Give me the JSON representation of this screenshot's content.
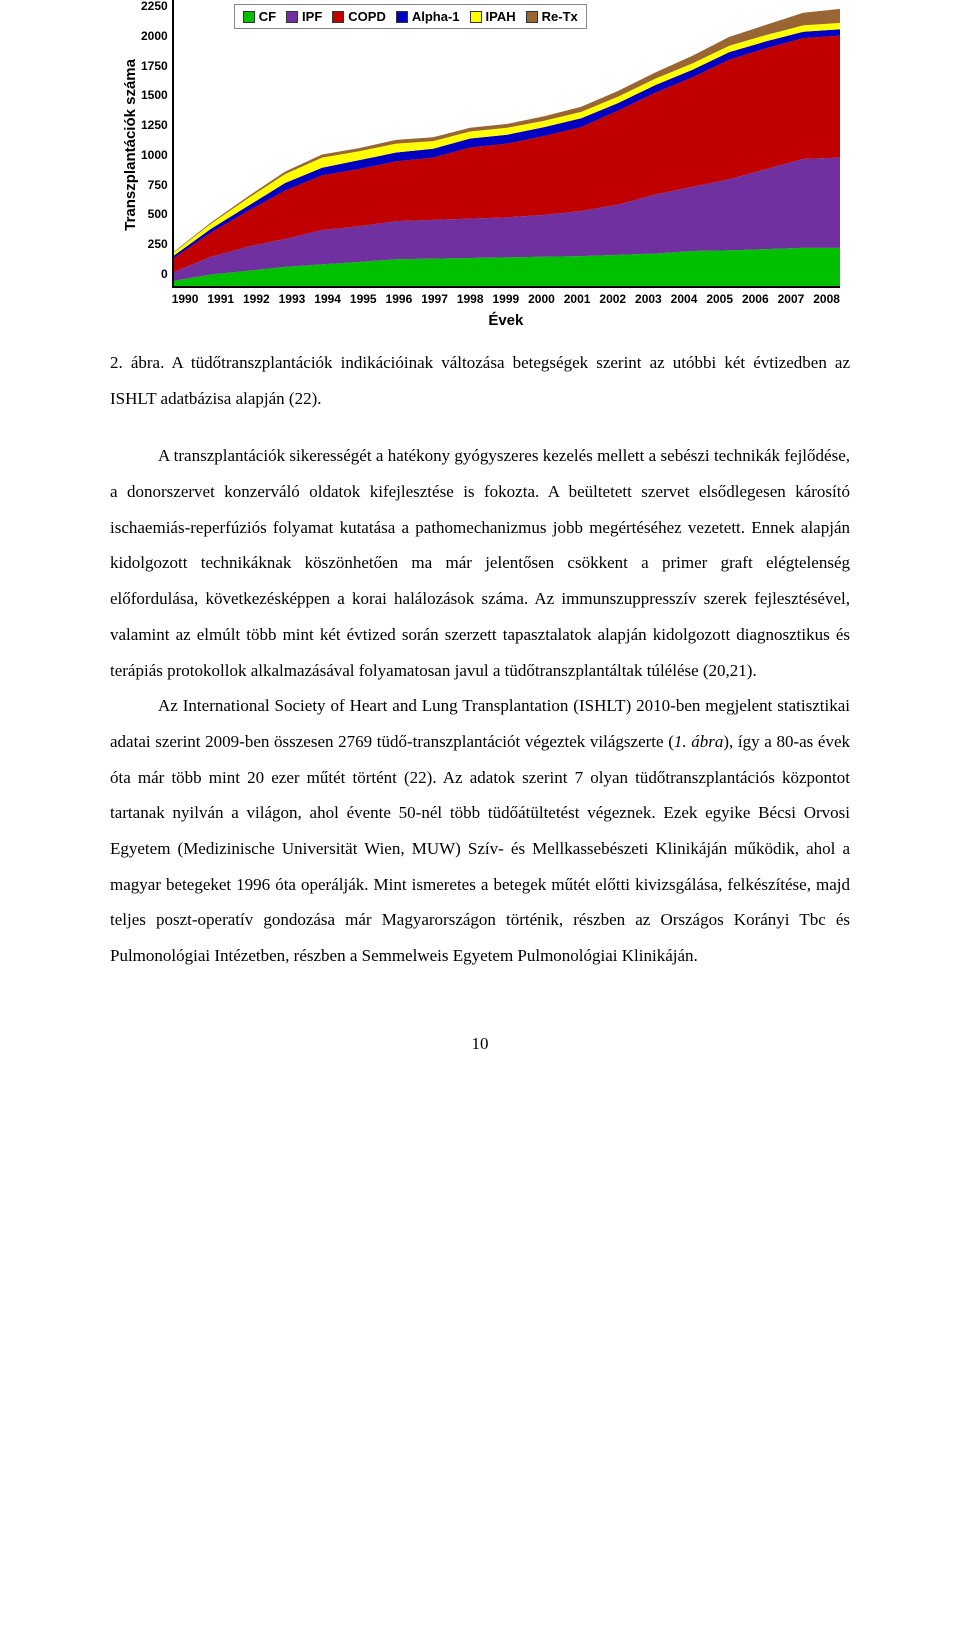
{
  "chart": {
    "type": "stacked-area",
    "y_axis_label": "Transzplantációk száma",
    "x_axis_label": "Évek",
    "x_categories": [
      "1990",
      "1991",
      "1992",
      "1993",
      "1994",
      "1995",
      "1996",
      "1997",
      "1998",
      "1999",
      "2000",
      "2001",
      "2002",
      "2003",
      "2004",
      "2005",
      "2006",
      "2007",
      "2008"
    ],
    "y_ticks": [
      "2250",
      "2000",
      "1750",
      "1500",
      "1250",
      "1000",
      "750",
      "500",
      "250",
      "0"
    ],
    "ylim": [
      0,
      2250
    ],
    "ytick_step": 250,
    "background_color": "#ffffff",
    "plot_bg": "#ffffff",
    "axis_color": "#000000",
    "tick_color": "#000000",
    "legend_border_color": "#888888",
    "legend_bg": "#ffffff",
    "font_family": "Arial",
    "font_weight_axis": 700,
    "axis_tick_fontsize": 12,
    "axis_label_fontsize": 15,
    "legend_fontsize": 13,
    "series": [
      {
        "key": "CF",
        "label": "CF",
        "color": "#00c000",
        "cum": [
          40,
          90,
          120,
          150,
          170,
          190,
          210,
          215,
          220,
          225,
          230,
          235,
          245,
          255,
          275,
          280,
          290,
          300,
          300
        ]
      },
      {
        "key": "IPF",
        "label": "IPF",
        "color": "#7030a0",
        "cum": [
          110,
          230,
          310,
          370,
          440,
          470,
          510,
          520,
          530,
          540,
          560,
          590,
          640,
          720,
          780,
          840,
          920,
          1000,
          1010
        ]
      },
      {
        "key": "COPD",
        "label": "COPD",
        "color": "#c00000",
        "cum": [
          220,
          420,
          590,
          750,
          870,
          920,
          980,
          1010,
          1090,
          1120,
          1180,
          1250,
          1380,
          1520,
          1640,
          1780,
          1870,
          1950,
          1970
        ]
      },
      {
        "key": "Alpha1",
        "label": "Alpha-1",
        "color": "#0000c0",
        "cum": [
          240,
          450,
          630,
          810,
          930,
          990,
          1050,
          1080,
          1160,
          1190,
          1250,
          1320,
          1440,
          1580,
          1700,
          1840,
          1925,
          2000,
          2020
        ]
      },
      {
        "key": "IPAH",
        "label": "IPAH",
        "color": "#ffff00",
        "cum": [
          265,
          490,
          690,
          880,
          1010,
          1060,
          1120,
          1140,
          1215,
          1245,
          1300,
          1370,
          1490,
          1630,
          1750,
          1890,
          1975,
          2050,
          2070
        ]
      },
      {
        "key": "ReTx",
        "label": "Re-Tx",
        "color": "#996633",
        "cum": [
          270,
          500,
          705,
          900,
          1035,
          1085,
          1150,
          1170,
          1245,
          1275,
          1335,
          1410,
          1535,
          1680,
          1810,
          1960,
          2055,
          2150,
          2180
        ]
      }
    ]
  },
  "caption": "2. ábra. A tüdőtranszplantációk indikációinak változása betegségek szerint az utóbbi két évtizedben az ISHLT adatbázisa alapján (22).",
  "paragraphs": [
    "A transzplantációk sikerességét a hatékony gyógyszeres kezelés mellett a sebészi technikák fejlődése, a donorszervet konzerváló oldatok kifejlesztése is fokozta. A beültetett szervet elsődlegesen károsító ischaemiás-reperfúziós folyamat kutatása a pathomechanizmus jobb megértéséhez vezetett. Ennek alapján kidolgozott technikáknak köszönhetően ma már jelentősen csökkent a primer graft elégtelenség előfordulása, következésképpen a korai halálozások száma. Az immunszuppresszív szerek fejlesztésével, valamint az elmúlt több mint két évtized során szerzett tapasztalatok alapján kidolgozott diagnosztikus és terápiás protokollok alkalmazásával folyamatosan javul a tüdőtranszplantáltak túlélése (20,21).",
    "Az International Society of Heart and Lung Transplantation (ISHLT) 2010-ben megjelent statisztikai adatai szerint 2009-ben összesen 2769 tüdő-transzplantációt végeztek világszerte (1. ábra), így a 80-as évek óta már több mint 20 ezer műtét történt (22). Az adatok szerint 7 olyan tüdőtranszplantációs központot tartanak nyilván a világon, ahol évente 50-nél több tüdőátültetést végeznek. Ezek egyike Bécsi Orvosi Egyetem (Medizinische Universität Wien, MUW) Szív- és Mellkassebészeti Klinikáján működik, ahol a magyar betegeket 1996 óta operálják. Mint ismeretes a betegek műtét előtti kivizsgálása, felkészítése, majd teljes poszt-operatív gondozása már Magyarországon történik, részben az Országos Korányi Tbc és Pulmonológiai Intézetben, részben a Semmelweis Egyetem Pulmonológiai Klinikáján."
  ],
  "page_number": "10"
}
